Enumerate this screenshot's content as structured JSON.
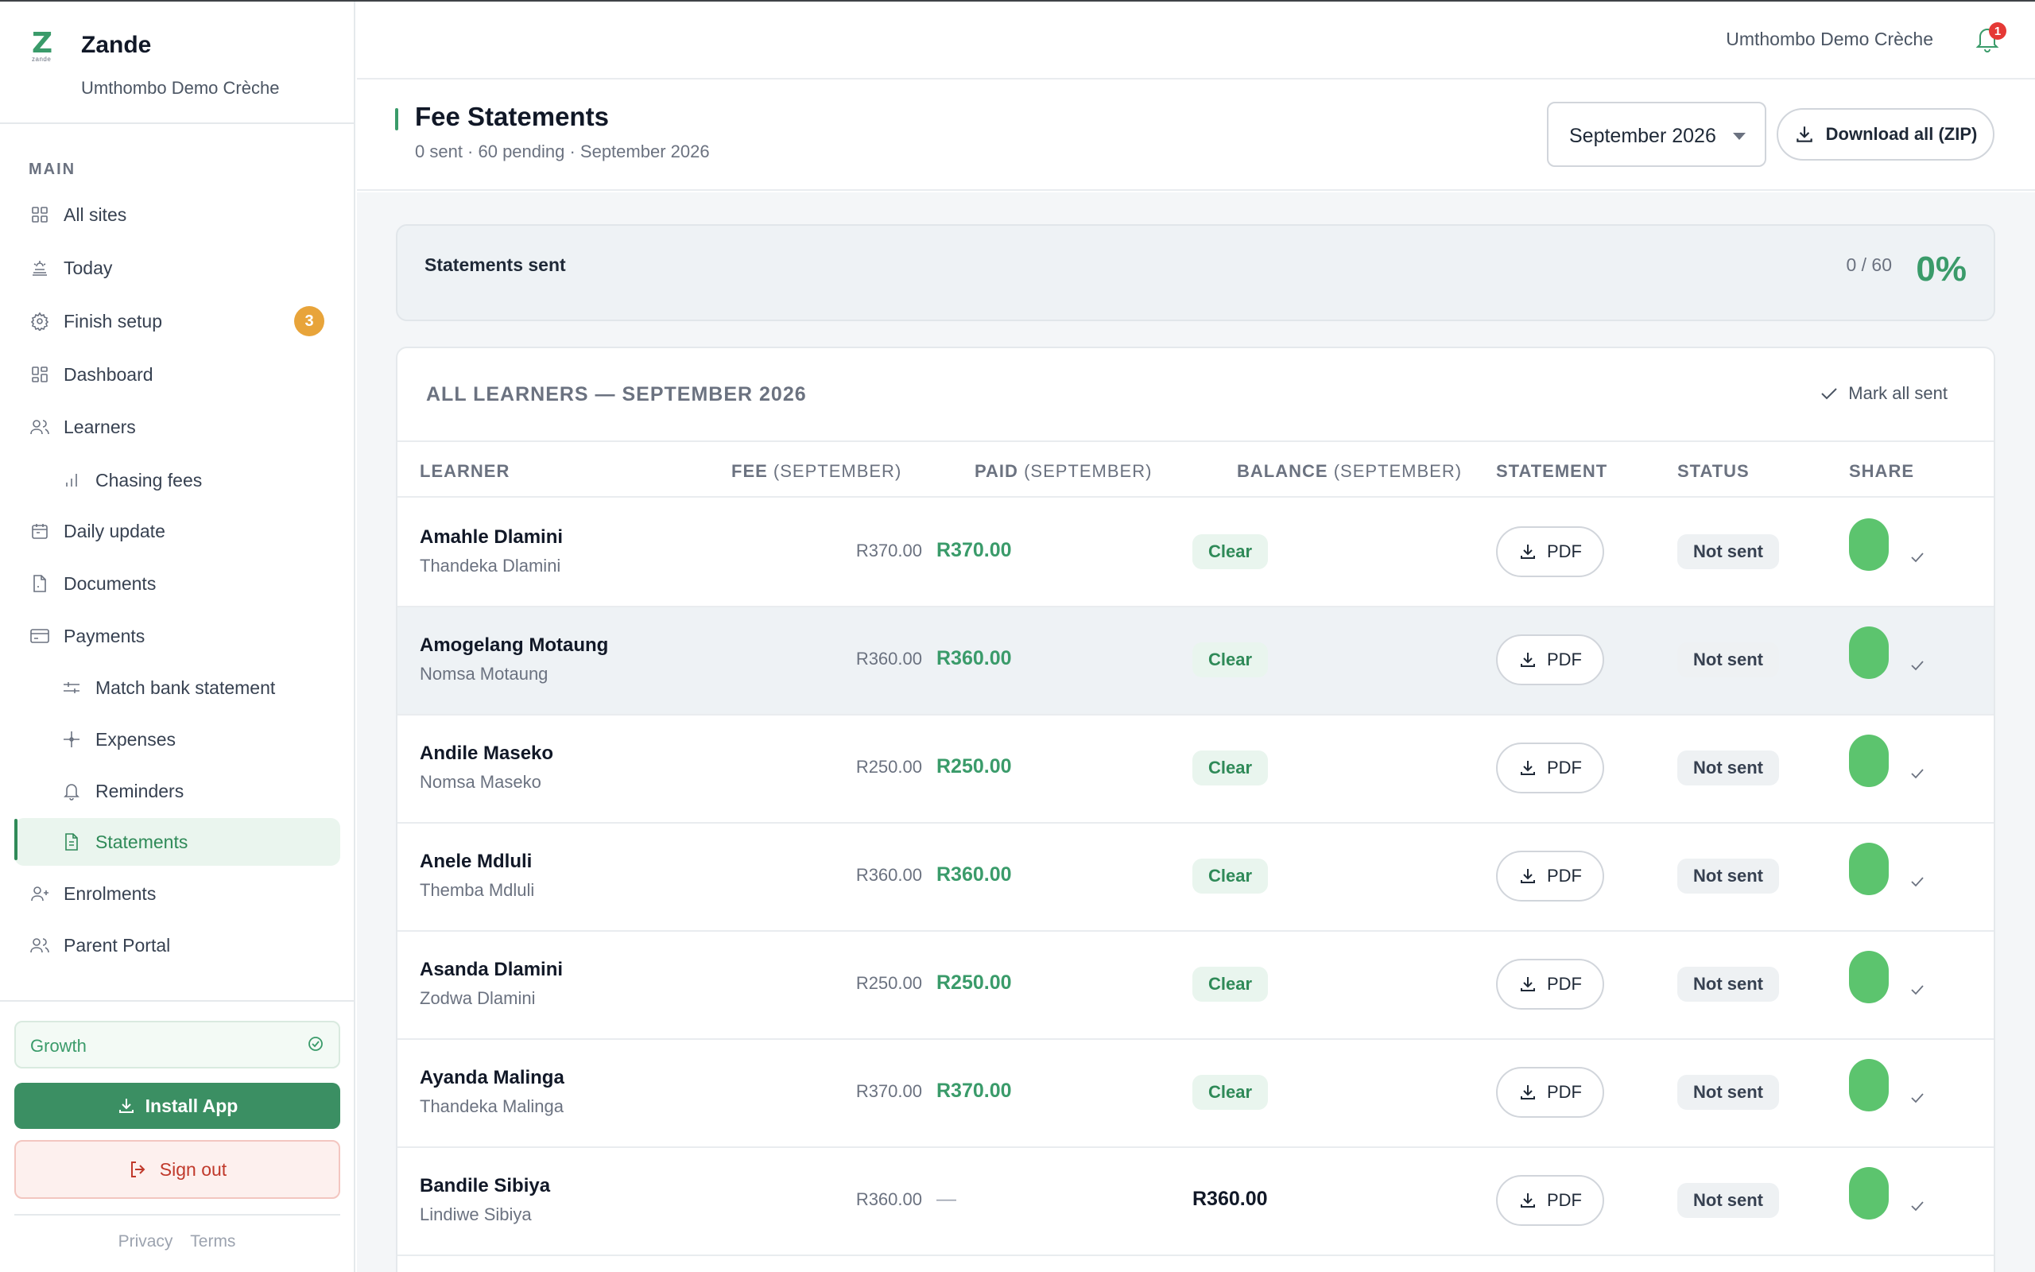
{
  "app": {
    "name": "Zande",
    "logo_letter": "Z",
    "logo_sub": "zande",
    "site": "Umthombo Demo Crèche"
  },
  "sidebar": {
    "section": "MAIN",
    "items": [
      {
        "label": "All sites",
        "icon": "grid-icon"
      },
      {
        "label": "Today",
        "icon": "sunrise-icon"
      },
      {
        "label": "Finish setup",
        "icon": "gear-icon",
        "badge": "3"
      },
      {
        "label": "Dashboard",
        "icon": "dashboard-icon"
      },
      {
        "label": "Learners",
        "icon": "users-icon"
      },
      {
        "label": "Chasing fees",
        "icon": "bar-chart-icon",
        "sub": true
      },
      {
        "label": "Daily update",
        "icon": "calendar-icon"
      },
      {
        "label": "Documents",
        "icon": "document-icon"
      },
      {
        "label": "Payments",
        "icon": "card-icon"
      },
      {
        "label": "Match bank statement",
        "icon": "sliders-icon",
        "sub": true
      },
      {
        "label": "Expenses",
        "icon": "sparkle-icon",
        "sub": true
      },
      {
        "label": "Reminders",
        "icon": "bell-icon",
        "sub": true
      },
      {
        "label": "Statements",
        "icon": "file-text-icon",
        "sub": true,
        "active": true
      },
      {
        "label": "Enrolments",
        "icon": "user-plus-icon"
      },
      {
        "label": "Parent Portal",
        "icon": "users-icon"
      }
    ],
    "plan": "Growth",
    "install": "Install App",
    "signout": "Sign out",
    "privacy": "Privacy",
    "terms": "Terms"
  },
  "topbar": {
    "site": "Umthombo Demo Crèche",
    "notifications": "1"
  },
  "header": {
    "title": "Fee Statements",
    "subtitle": "0 sent · 60 pending · September 2026",
    "month": "September 2026",
    "download_all": "Download all (ZIP)"
  },
  "progress": {
    "label": "Statements sent",
    "count": "0 / 60",
    "percent": "0%"
  },
  "table": {
    "heading": "ALL LEARNERS — SEPTEMBER 2026",
    "mark_all": "Mark all sent",
    "columns": {
      "learner": "LEARNER",
      "fee": "FEE",
      "fee_period": "(SEPTEMBER)",
      "paid": "PAID",
      "paid_period": "(SEPTEMBER)",
      "balance": "BALANCE",
      "balance_period": "(SEPTEMBER)",
      "statement": "STATEMENT",
      "status": "STATUS",
      "share": "SHARE"
    },
    "pdf_label": "PDF",
    "rows": [
      {
        "name": "Amahle Dlamini",
        "parent": "Thandeka Dlamini",
        "fee": "R370.00",
        "paid": "R370.00",
        "balance": "Clear",
        "status": "Not sent"
      },
      {
        "name": "Amogelang Motaung",
        "parent": "Nomsa Motaung",
        "fee": "R360.00",
        "paid": "R360.00",
        "balance": "Clear",
        "status": "Not sent"
      },
      {
        "name": "Andile Maseko",
        "parent": "Nomsa Maseko",
        "fee": "R250.00",
        "paid": "R250.00",
        "balance": "Clear",
        "status": "Not sent"
      },
      {
        "name": "Anele Mdluli",
        "parent": "Themba Mdluli",
        "fee": "R360.00",
        "paid": "R360.00",
        "balance": "Clear",
        "status": "Not sent"
      },
      {
        "name": "Asanda Dlamini",
        "parent": "Zodwa Dlamini",
        "fee": "R250.00",
        "paid": "R250.00",
        "balance": "Clear",
        "status": "Not sent"
      },
      {
        "name": "Ayanda Malinga",
        "parent": "Thandeka Malinga",
        "fee": "R370.00",
        "paid": "R370.00",
        "balance": "Clear",
        "status": "Not sent"
      },
      {
        "name": "Bandile Sibiya",
        "parent": "Lindiwe Sibiya",
        "fee": "R360.00",
        "paid": "—",
        "balance": "R360.00",
        "status": "Not sent"
      }
    ]
  },
  "colors": {
    "brand": "#3a9b6a",
    "share": "#5cc46e",
    "badge": "#e8a43a",
    "danger": "#c0392b"
  }
}
